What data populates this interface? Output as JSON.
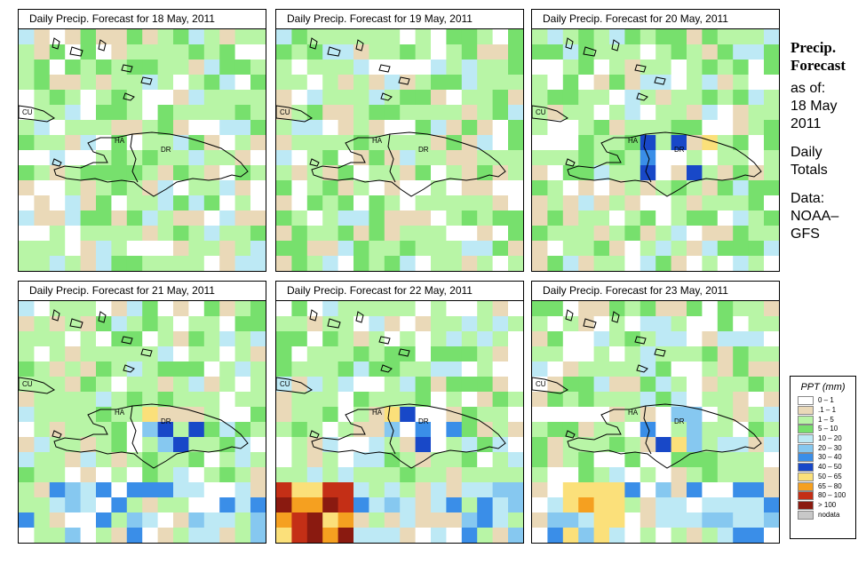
{
  "panels": [
    {
      "title": "Daily Precip. Forecast for  18 May, 2011",
      "seed": 11,
      "labels": [
        "CU",
        "HA",
        "DR"
      ]
    },
    {
      "title": "Daily Precip. Forecast for  19 May, 2011",
      "seed": 23,
      "labels": [
        "CU",
        "HA",
        "DR"
      ]
    },
    {
      "title": "Daily Precip. Forecast for  20 May, 2011",
      "seed": 37,
      "labels": [
        "CU",
        "HA",
        "DR"
      ]
    },
    {
      "title": "Daily Precip. Forecast for  21 May, 2011",
      "seed": 41,
      "labels": [
        "CU",
        "HA",
        "DR"
      ]
    },
    {
      "title": "Daily Precip. Forecast for  22 May, 2011",
      "seed": 53,
      "labels": [
        "CU",
        "HA",
        "DR"
      ]
    },
    {
      "title": "Daily Precip. Forecast for  23 May, 2011",
      "seed": 67,
      "labels": [
        "CU",
        "HA",
        "DR"
      ]
    }
  ],
  "side": {
    "title_line1": "Precip.",
    "title_line2": "Forecast",
    "asof": "as of:",
    "date_line1": "18 May",
    "date_line2": "2011",
    "totals_line1": "Daily",
    "totals_line2": "Totals",
    "data_line1": "Data:",
    "data_line2": "NOAA–",
    "data_line3": "GFS"
  },
  "legend": {
    "title": "PPT (mm)",
    "entries": [
      {
        "label": "0 – 1",
        "color": "#ffffff"
      },
      {
        "label": ".1 – 1",
        "color": "#ead9b8"
      },
      {
        "label": "1 – 5",
        "color": "#b8f5a6"
      },
      {
        "label": "5 – 10",
        "color": "#77e06d"
      },
      {
        "label": "10 – 20",
        "color": "#bde9f5"
      },
      {
        "label": "20 – 30",
        "color": "#86c8f0"
      },
      {
        "label": "30 – 40",
        "color": "#3a8ee8"
      },
      {
        "label": "40 – 50",
        "color": "#1848c8"
      },
      {
        "label": "50 – 65",
        "color": "#fbe07a"
      },
      {
        "label": "65 – 80",
        "color": "#f5a020"
      },
      {
        "label": "80 – 100",
        "color": "#c42f16"
      },
      {
        "label": "> 100",
        "color": "#8a1a10"
      },
      {
        "label": "nodata",
        "color": "#c8c8c8"
      }
    ]
  }
}
